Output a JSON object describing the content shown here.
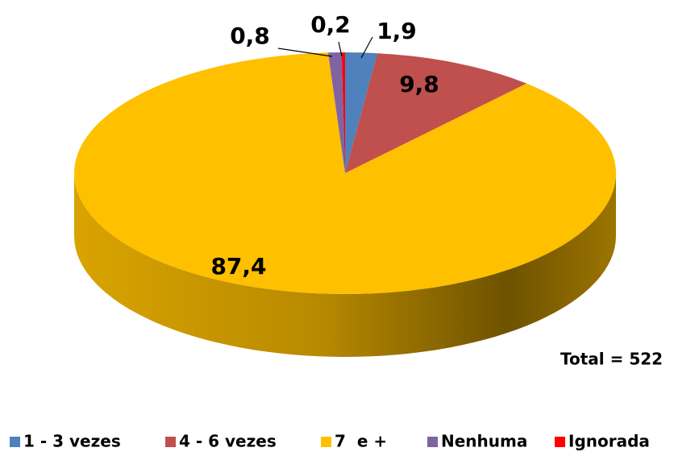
{
  "chart_data": {
    "type": "pie",
    "categories": [
      "1 - 3 vezes",
      "4 - 6 vezes",
      "7  e +",
      "Nenhuma",
      "Ignorada"
    ],
    "values": [
      1.9,
      9.8,
      87.4,
      0.8,
      0.2
    ],
    "value_labels": [
      "1,9",
      "9,8",
      "87,4",
      "0,8",
      "0,2"
    ],
    "colors": [
      "#4f81bd",
      "#c0504d",
      "#ffc000",
      "#8064a2",
      "#ff0000"
    ],
    "annotation": "Total = 522",
    "legend": "bottom"
  }
}
